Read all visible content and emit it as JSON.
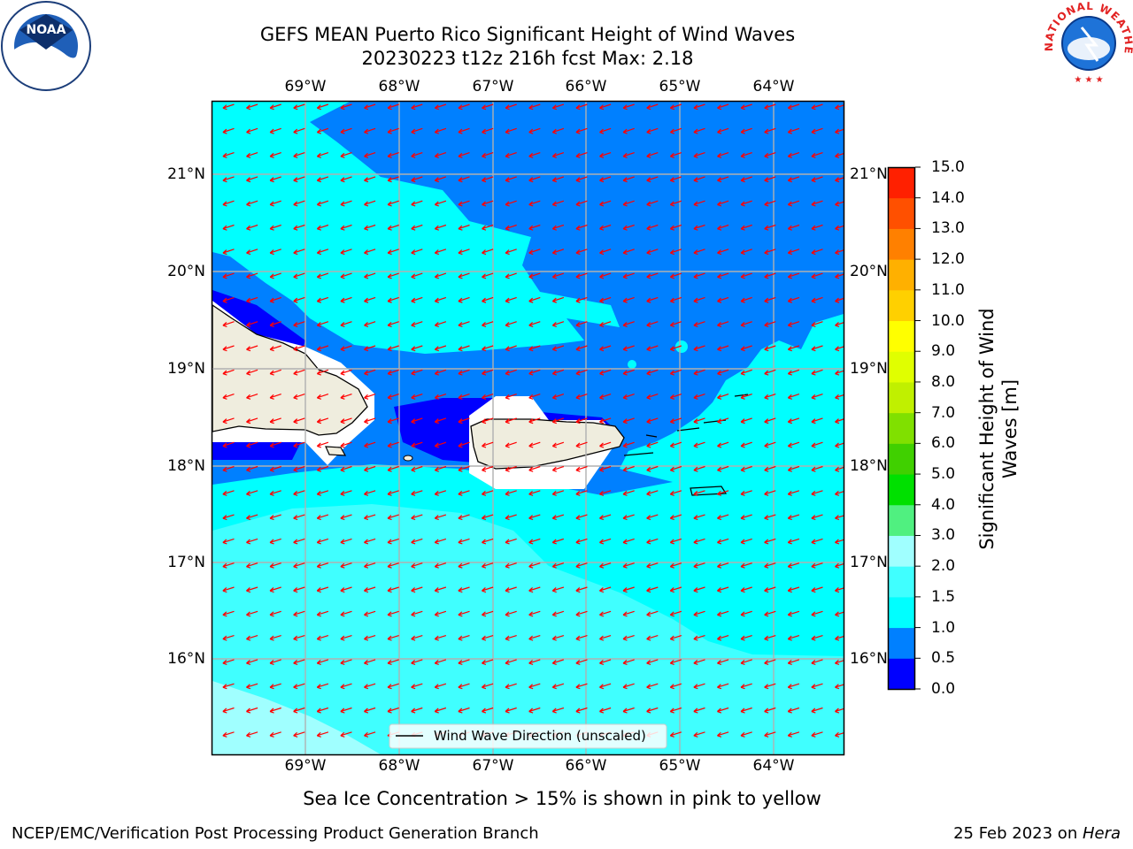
{
  "title": {
    "line1": "GEFS MEAN Puerto Rico Significant Height of Wind Waves",
    "line2": "20230223 t12z 216h fcst   Max: 2.18"
  },
  "logos": {
    "left": "NOAA",
    "right": "NATIONAL WEATHER SERVICE"
  },
  "longitudes": [
    "69°W",
    "68°W",
    "67°W",
    "66°W",
    "65°W",
    "64°W"
  ],
  "latitudes": [
    "21°N",
    "20°N",
    "19°N",
    "18°N",
    "17°N",
    "16°N"
  ],
  "legend": {
    "label": "Wind Wave Direction (unscaled)"
  },
  "colorbar": {
    "title": "Significant Height of Wind Waves [m]",
    "title_line1": "Significant Height of Wind",
    "title_line2": "Waves [m]",
    "ticks": [
      "0.0",
      "0.5",
      "1.0",
      "1.5",
      "2.0",
      "3.0",
      "4.0",
      "5.0",
      "6.0",
      "7.0",
      "8.0",
      "9.0",
      "10.0",
      "11.0",
      "12.0",
      "13.0",
      "14.0",
      "15.0"
    ],
    "colors": [
      "#0000ff",
      "#0080ff",
      "#00ffff",
      "#40ffff",
      "#a0ffff",
      "#50f080",
      "#00e000",
      "#40d000",
      "#80e000",
      "#c0f000",
      "#e0ff00",
      "#ffff00",
      "#ffd000",
      "#ffb000",
      "#ff8000",
      "#ff5000",
      "#ff2000"
    ]
  },
  "note": "Sea Ice Concentration > 15% is shown in pink to yellow",
  "footer": {
    "left": "NCEP/EMC/Verification Post Processing Product Generation Branch",
    "right_date": "25 Feb 2023 on ",
    "right_host": "Hera"
  },
  "map_colors": {
    "deep": "#0000ff",
    "mid": "#0080ff",
    "cyan": "#00ffff",
    "light": "#40ffff",
    "pale": "#a0ffff",
    "land": "#efedde",
    "arrow": "#ff0000",
    "grid": "#b0b0b0"
  }
}
